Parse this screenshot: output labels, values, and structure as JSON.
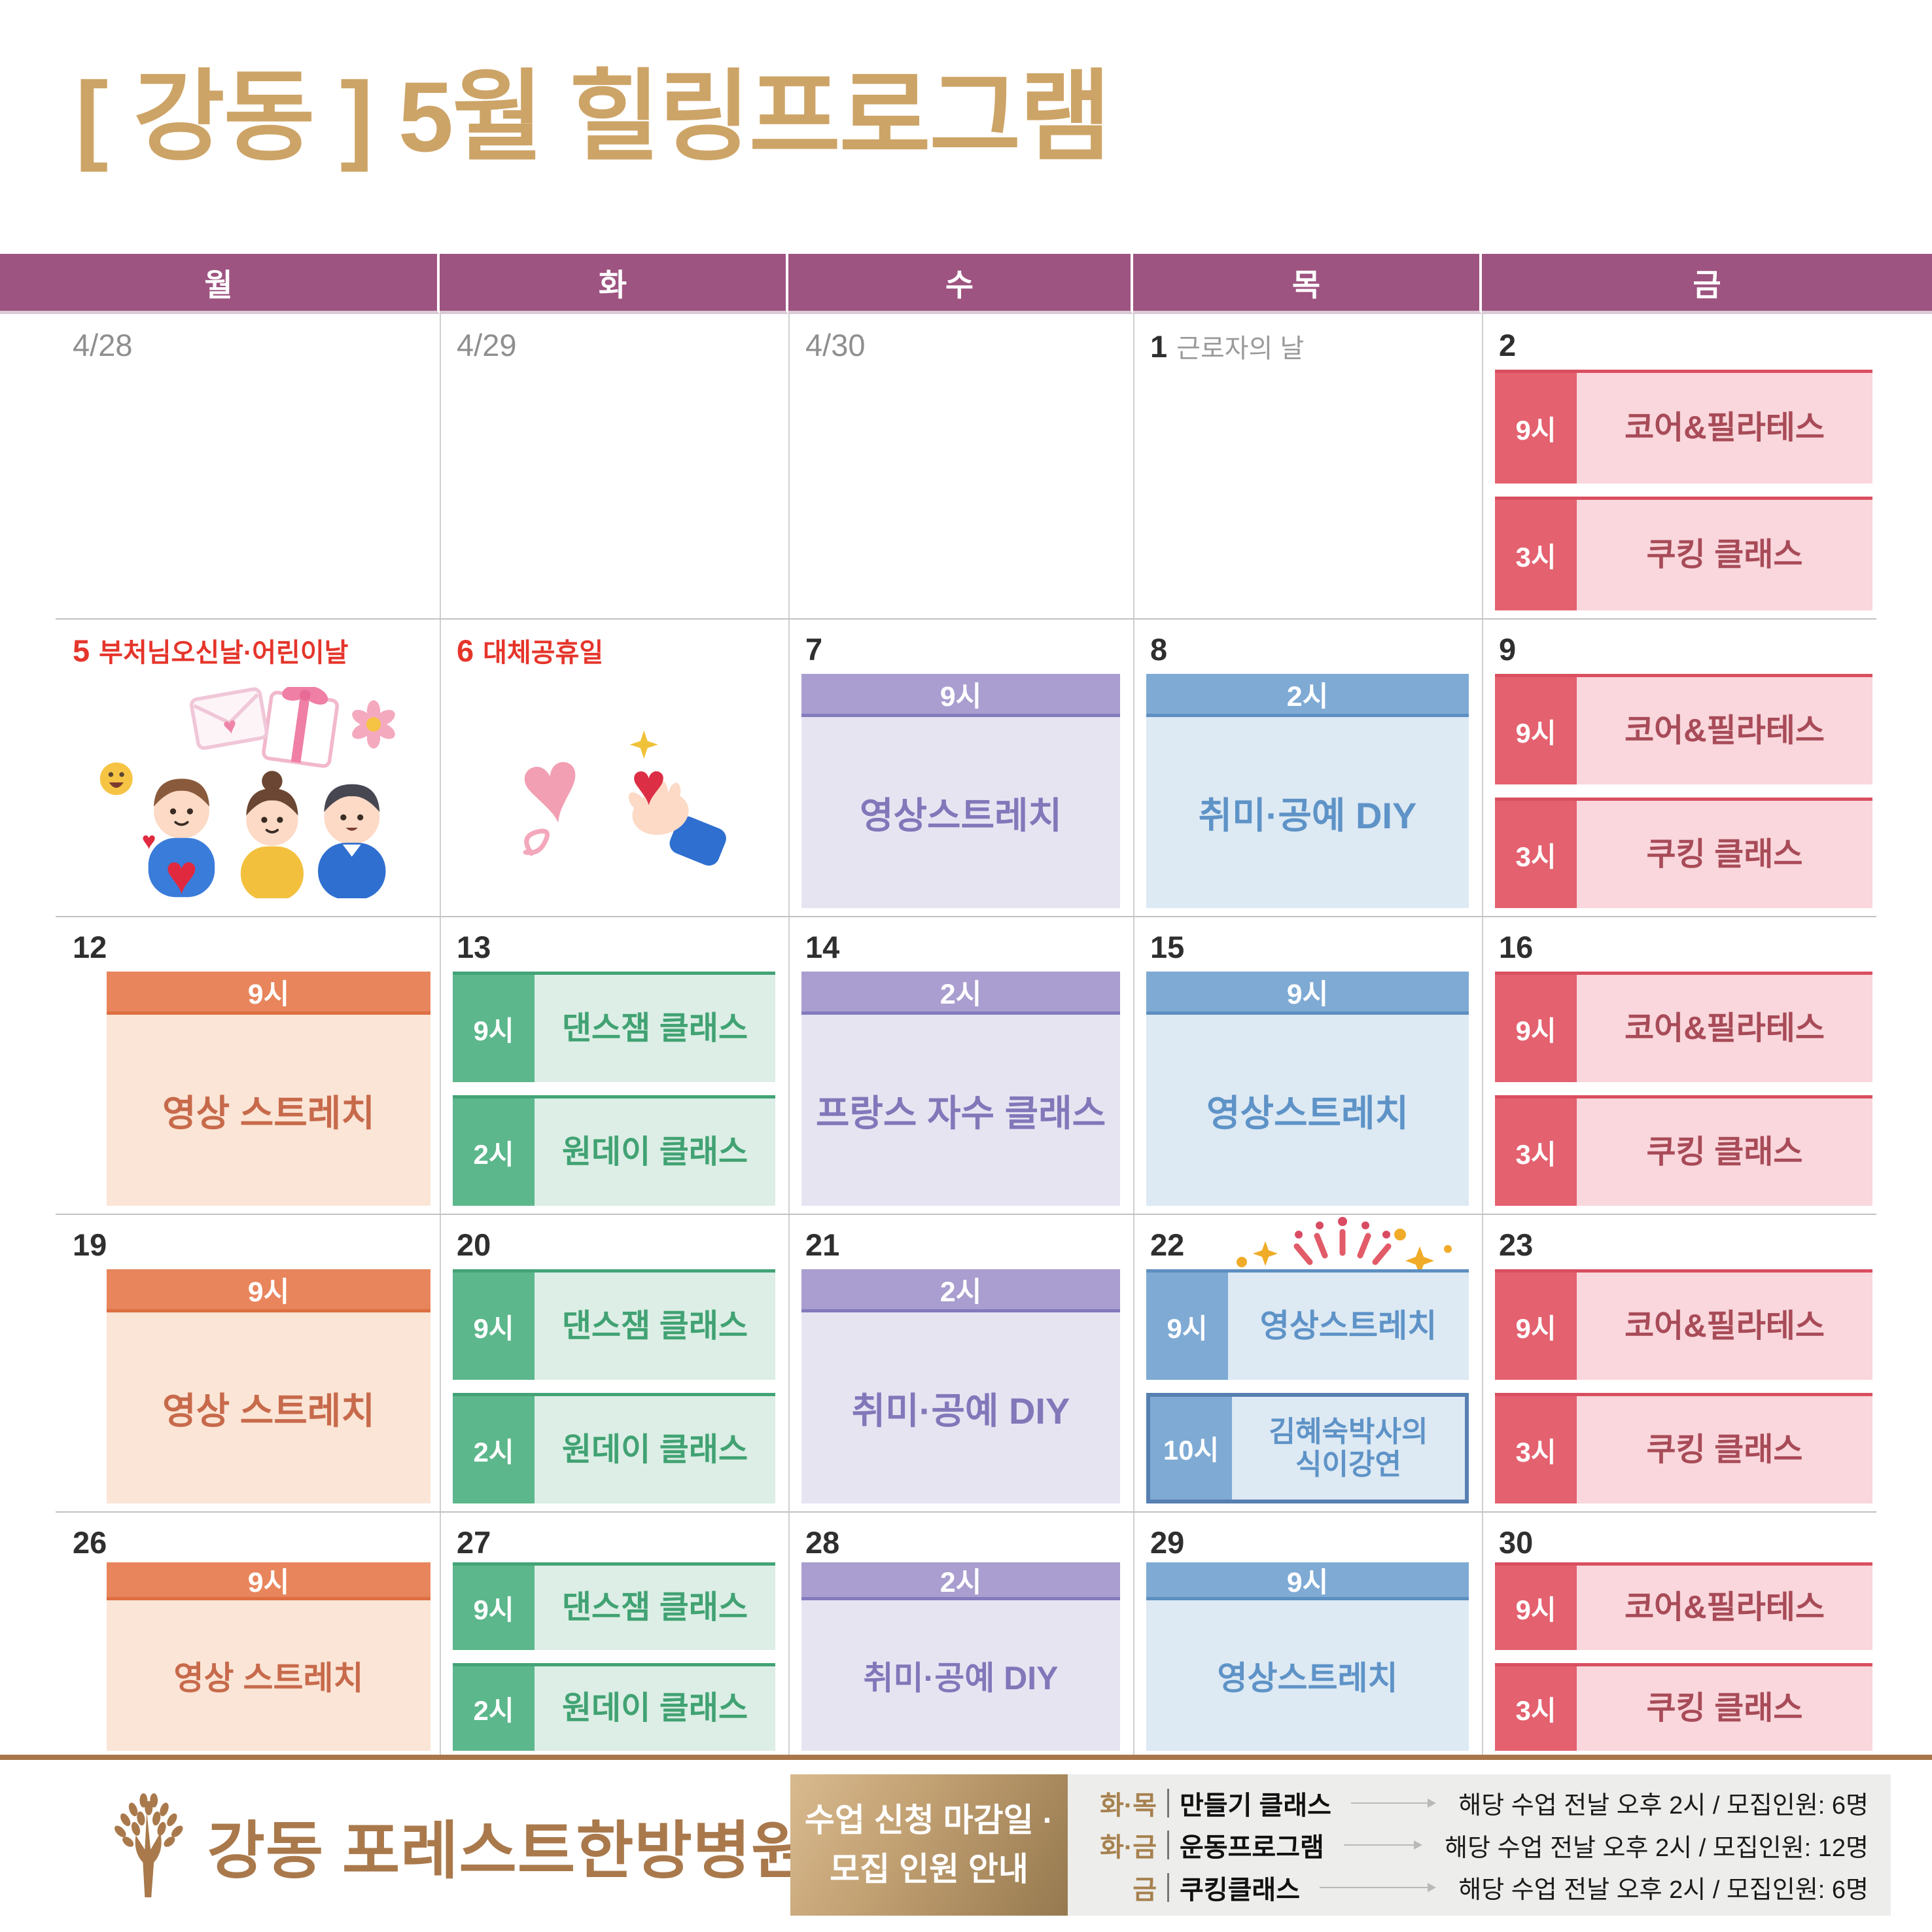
{
  "title": "[ 강동 ] 5월 힐링프로그램",
  "weekdays": [
    "월",
    "화",
    "수",
    "목",
    "금"
  ],
  "colors": {
    "title_gold": "#cda467",
    "header_purple": "#9e5480",
    "holiday_red": "#e5352b",
    "footer_bronze": "#a9794c",
    "divider_gold": "#a8764b",
    "palettes": {
      "pink": {
        "time": "#e4616f",
        "accent": "#d94f60",
        "body": "#f9d7dc",
        "text": "#a84b58"
      },
      "orange": {
        "time": "#e8855c",
        "accent": "#dd6f42",
        "body": "#fbe5d6",
        "text": "#c76a4b"
      },
      "green": {
        "time": "#5cb78c",
        "accent": "#43a377",
        "body": "#dceee5",
        "text": "#41a273"
      },
      "purple": {
        "time": "#a99ecf",
        "accent": "#837bbd",
        "body": "#e7e4f2",
        "text": "#8277b9"
      },
      "blue": {
        "time": "#7eaad4",
        "accent": "#5d8fc0",
        "body": "#dde9f3",
        "text": "#5e93c7"
      }
    }
  },
  "calendar": {
    "weeks": [
      [
        {
          "date": "4/28",
          "muted": true
        },
        {
          "date": "4/29",
          "muted": true
        },
        {
          "date": "4/30",
          "muted": true
        },
        {
          "date": "1",
          "holiday": "근로자의 날",
          "holiday_style": "gray"
        },
        {
          "date": "2",
          "events": [
            {
              "type": "side",
              "palette": "pink",
              "time": "9시",
              "label": "코어&필라테스"
            },
            {
              "type": "side",
              "palette": "pink",
              "time": "3시",
              "label": "쿠킹 클래스"
            }
          ]
        }
      ],
      [
        {
          "date": "5",
          "holiday": "부처님오신날·어린이날",
          "holiday_style": "red",
          "illustration": "family-illustration"
        },
        {
          "date": "6",
          "holiday": "대체공휴일",
          "holiday_style": "red",
          "illustration": "heart-hand-illustration"
        },
        {
          "date": "7",
          "events": [
            {
              "type": "banner",
              "palette": "purple",
              "time": "9시",
              "label": "영상스트레치"
            }
          ]
        },
        {
          "date": "8",
          "events": [
            {
              "type": "banner",
              "palette": "blue",
              "time": "2시",
              "label": "취미·공예 DIY"
            }
          ]
        },
        {
          "date": "9",
          "events": [
            {
              "type": "side",
              "palette": "pink",
              "time": "9시",
              "label": "코어&필라테스"
            },
            {
              "type": "side",
              "palette": "pink",
              "time": "3시",
              "label": "쿠킹 클래스"
            }
          ]
        }
      ],
      [
        {
          "date": "12",
          "events": [
            {
              "type": "banner",
              "palette": "orange",
              "time": "9시",
              "label": "영상 스트레치"
            }
          ]
        },
        {
          "date": "13",
          "events": [
            {
              "type": "side",
              "palette": "green",
              "time": "9시",
              "label": "댄스잼 클래스"
            },
            {
              "type": "side",
              "palette": "green",
              "time": "2시",
              "label": "원데이 클래스"
            }
          ]
        },
        {
          "date": "14",
          "events": [
            {
              "type": "banner",
              "palette": "purple",
              "time": "2시",
              "label": "프랑스 자수 클래스"
            }
          ]
        },
        {
          "date": "15",
          "events": [
            {
              "type": "banner",
              "palette": "blue",
              "time": "9시",
              "label": "영상스트레치"
            }
          ]
        },
        {
          "date": "16",
          "events": [
            {
              "type": "side",
              "palette": "pink",
              "time": "9시",
              "label": "코어&필라테스"
            },
            {
              "type": "side",
              "palette": "pink",
              "time": "3시",
              "label": "쿠킹 클래스"
            }
          ]
        }
      ],
      [
        {
          "date": "19",
          "events": [
            {
              "type": "banner",
              "palette": "orange",
              "time": "9시",
              "label": "영상 스트레치"
            }
          ]
        },
        {
          "date": "20",
          "events": [
            {
              "type": "side",
              "palette": "green",
              "time": "9시",
              "label": "댄스잼 클래스"
            },
            {
              "type": "side",
              "palette": "green",
              "time": "2시",
              "label": "원데이 클래스"
            }
          ]
        },
        {
          "date": "21",
          "events": [
            {
              "type": "banner",
              "palette": "purple",
              "time": "2시",
              "label": "취미·공예 DIY"
            }
          ]
        },
        {
          "date": "22",
          "decoration": "sparkle-decoration",
          "events": [
            {
              "type": "side",
              "palette": "blue",
              "time": "9시",
              "label": "영상스트레치"
            },
            {
              "type": "side",
              "palette": "blue",
              "time": "10시",
              "label": "김혜숙박사의\n식이강연",
              "boxed": true
            }
          ]
        },
        {
          "date": "23",
          "events": [
            {
              "type": "side",
              "palette": "pink",
              "time": "9시",
              "label": "코어&필라테스"
            },
            {
              "type": "side",
              "palette": "pink",
              "time": "3시",
              "label": "쿠킹 클래스"
            }
          ]
        }
      ],
      [
        {
          "date": "26",
          "events": [
            {
              "type": "banner",
              "palette": "orange",
              "time": "9시",
              "label": "영상 스트레치"
            }
          ]
        },
        {
          "date": "27",
          "events": [
            {
              "type": "side",
              "palette": "green",
              "time": "9시",
              "label": "댄스잼 클래스"
            },
            {
              "type": "side",
              "palette": "green",
              "time": "2시",
              "label": "원데이 클래스"
            }
          ]
        },
        {
          "date": "28",
          "events": [
            {
              "type": "banner",
              "palette": "purple",
              "time": "2시",
              "label": "취미·공예 DIY"
            }
          ]
        },
        {
          "date": "29",
          "events": [
            {
              "type": "banner",
              "palette": "blue",
              "time": "9시",
              "label": "영상스트레치"
            }
          ]
        },
        {
          "date": "30",
          "events": [
            {
              "type": "side",
              "palette": "pink",
              "time": "9시",
              "label": "코어&필라테스"
            },
            {
              "type": "side",
              "palette": "pink",
              "time": "3시",
              "label": "쿠킹 클래스"
            }
          ]
        }
      ]
    ]
  },
  "footer": {
    "hospital_name": "강동 포레스트한방병원",
    "notice_line1": "수업 신청 마감일 ·",
    "notice_line2": "모집 인원 안내",
    "legend": [
      {
        "days": "화·목",
        "program": "만들기 클래스",
        "desc": "해당 수업 전날 오후 2시 / 모집인원: 6명"
      },
      {
        "days": "화·금",
        "program": "운동프로그램",
        "desc": "해당 수업 전날 오후 2시 / 모집인원: 12명"
      },
      {
        "days": "금",
        "program": "쿠킹클래스",
        "desc": "해당 수업 전날 오후 2시 / 모집인원: 6명"
      }
    ]
  }
}
